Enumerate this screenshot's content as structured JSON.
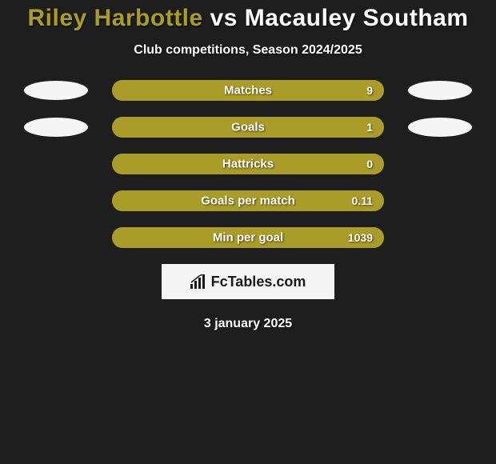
{
  "title": {
    "player1": "Riley Harbottle",
    "player2": "Macauley Southam",
    "player1_color": "#a99c28",
    "player2_color": "#ffffff"
  },
  "subtitle": "Club competitions, Season 2024/2025",
  "subtitle_color": "#ffffff",
  "bars": [
    {
      "label": "Matches",
      "value": "9",
      "fill_pct": 100,
      "show_ellipses": true
    },
    {
      "label": "Goals",
      "value": "1",
      "fill_pct": 100,
      "show_ellipses": true
    },
    {
      "label": "Hattricks",
      "value": "0",
      "fill_pct": 100,
      "show_ellipses": false
    },
    {
      "label": "Goals per match",
      "value": "0.11",
      "fill_pct": 100,
      "show_ellipses": false
    },
    {
      "label": "Min per goal",
      "value": "1039",
      "fill_pct": 100,
      "show_ellipses": false
    }
  ],
  "bar_style": {
    "track_color": "#a99c28",
    "fill_color": "#a99c28",
    "label_color": "#ffffff",
    "value_color": "#ffffff",
    "ellipse_color": "#f5f5f5",
    "track_width": 340,
    "track_height": 26
  },
  "logo": {
    "text": "FcTables.com",
    "box_bg": "#f5f5f5",
    "text_color": "#1a1a1a"
  },
  "date": "3 january 2025",
  "date_color": "#ffffff",
  "background": "#1f1e1e"
}
